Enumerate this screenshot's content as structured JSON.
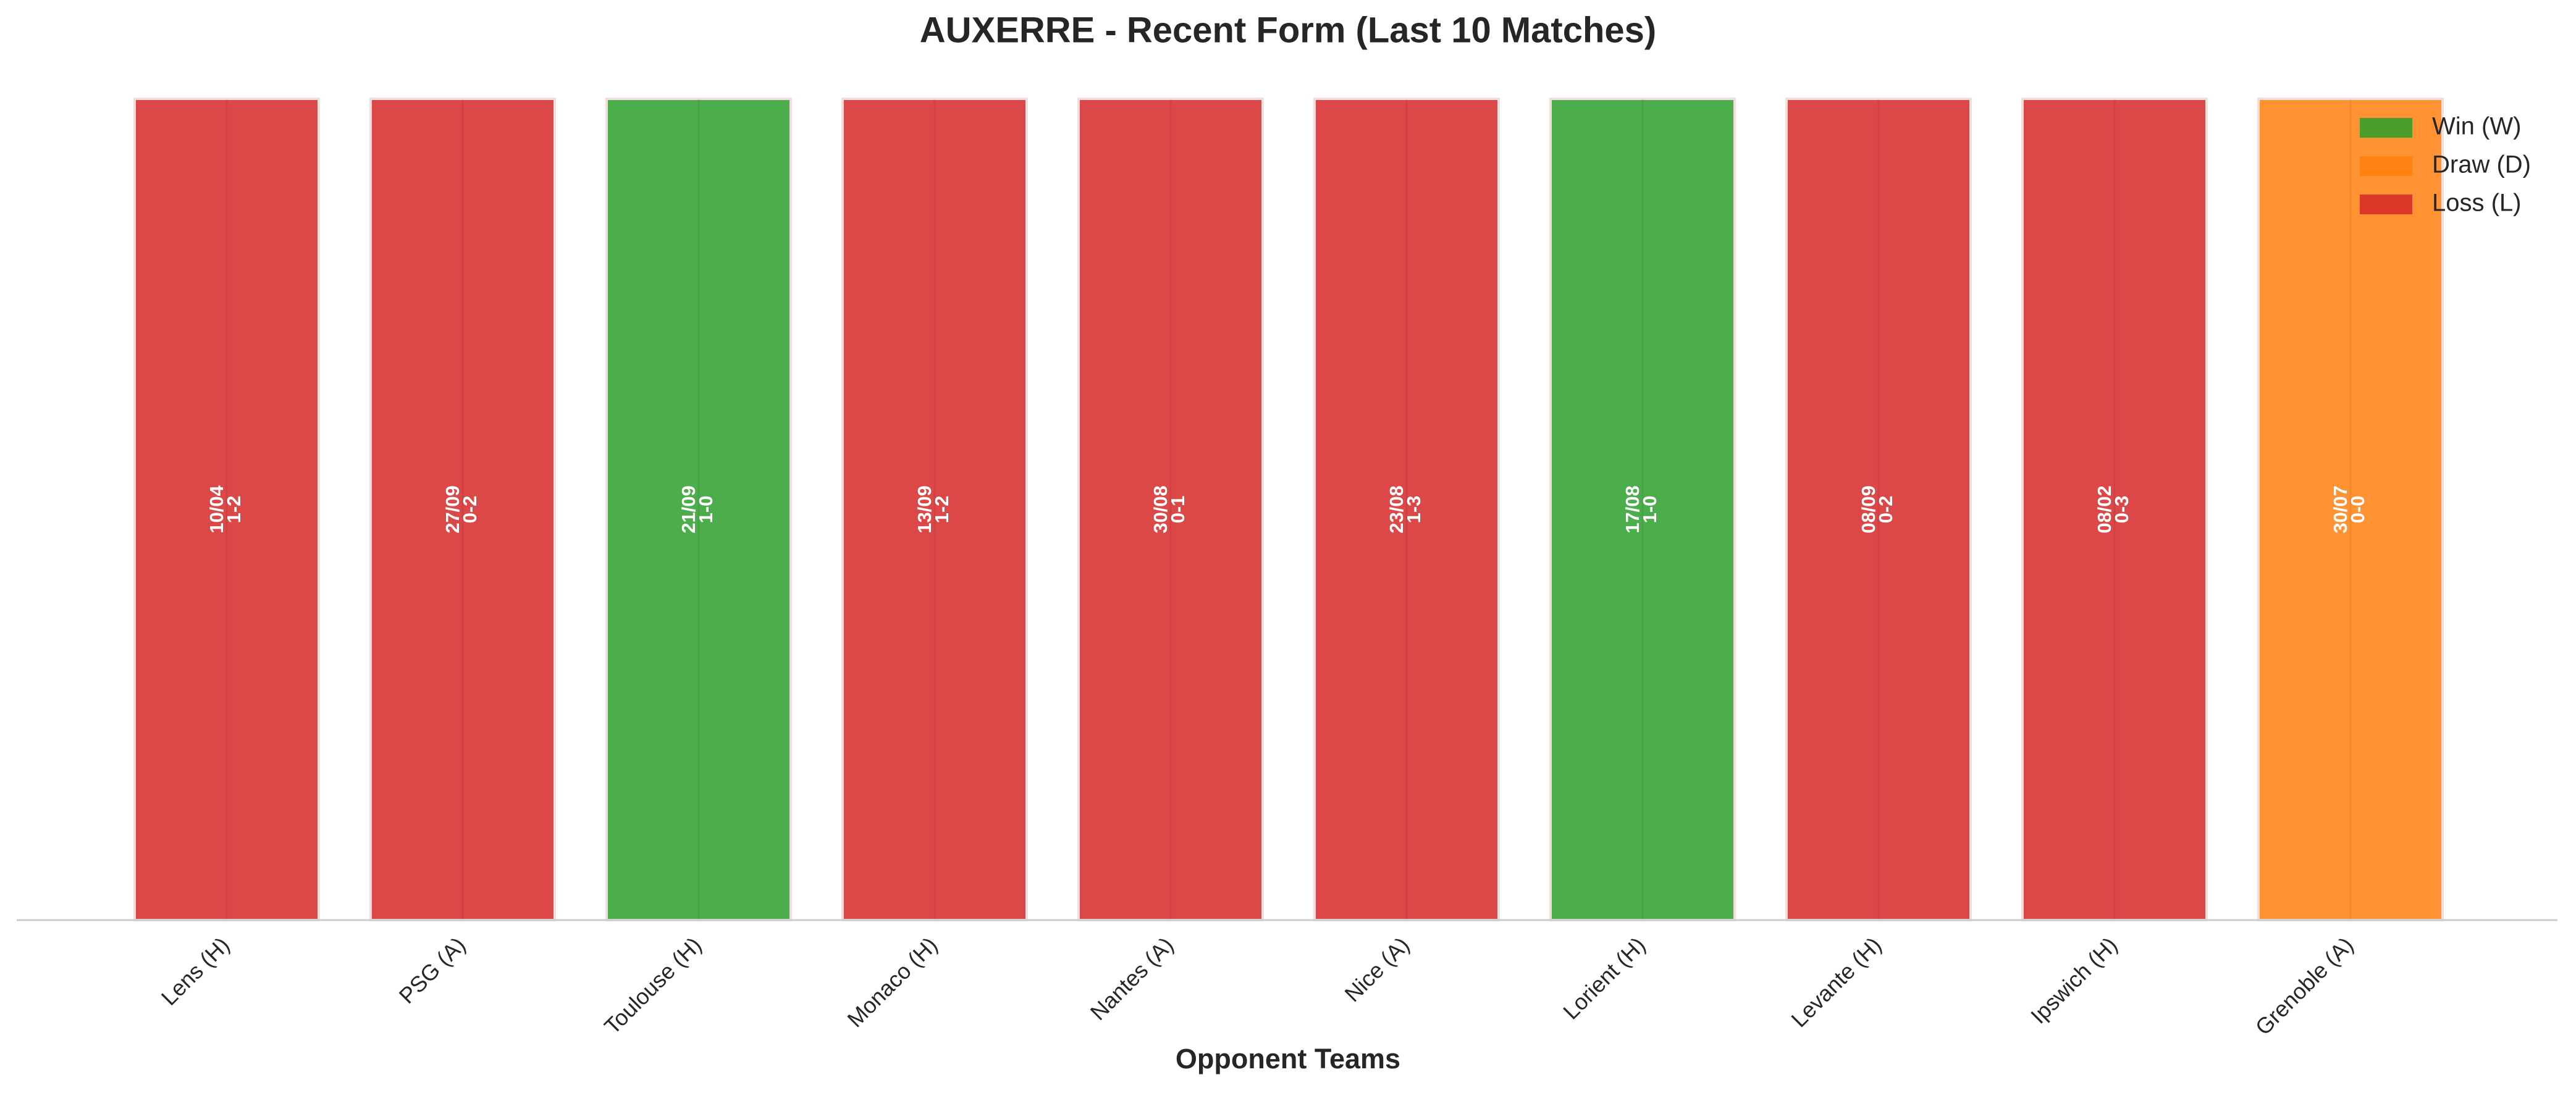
{
  "chart_data": {
    "type": "bar",
    "title": "AUXERRE - Recent Form (Last 10 Matches)",
    "x_label": "Opponent Teams",
    "categories": [
      "Lens (H)",
      "PSG (A)",
      "Toulouse (H)",
      "Monaco (H)",
      "Nantes (A)",
      "Nice (A)",
      "Lorient (H)",
      "Levante (H)",
      "Ipswich (H)",
      "Grenoble (A)"
    ],
    "values": [
      1,
      1,
      1,
      1,
      1,
      1,
      1,
      1,
      1,
      1
    ],
    "dates": [
      "10/04",
      "27/09",
      "21/09",
      "13/09",
      "30/08",
      "23/08",
      "17/08",
      "08/09",
      "08/02",
      "30/07"
    ],
    "scores": [
      "1-2",
      "0-2",
      "1-0",
      "1-2",
      "0-1",
      "1-3",
      "1-0",
      "0-2",
      "0-3",
      "0-0"
    ],
    "colors": [
      "#d62728",
      "#d62728",
      "#2ca02c",
      "#d62728",
      "#d62728",
      "#d62728",
      "#2ca02c",
      "#d62728",
      "#d62728",
      "#ff7f0e"
    ],
    "ylim": [
      0,
      1
    ],
    "legend": [
      {
        "name": "Win (W)",
        "color": "#2ca02c"
      },
      {
        "name": "Draw (D)",
        "color": "#ff7f0e"
      },
      {
        "name": "Loss (L)",
        "color": "#d62728"
      }
    ],
    "legend_position": "upper right"
  }
}
